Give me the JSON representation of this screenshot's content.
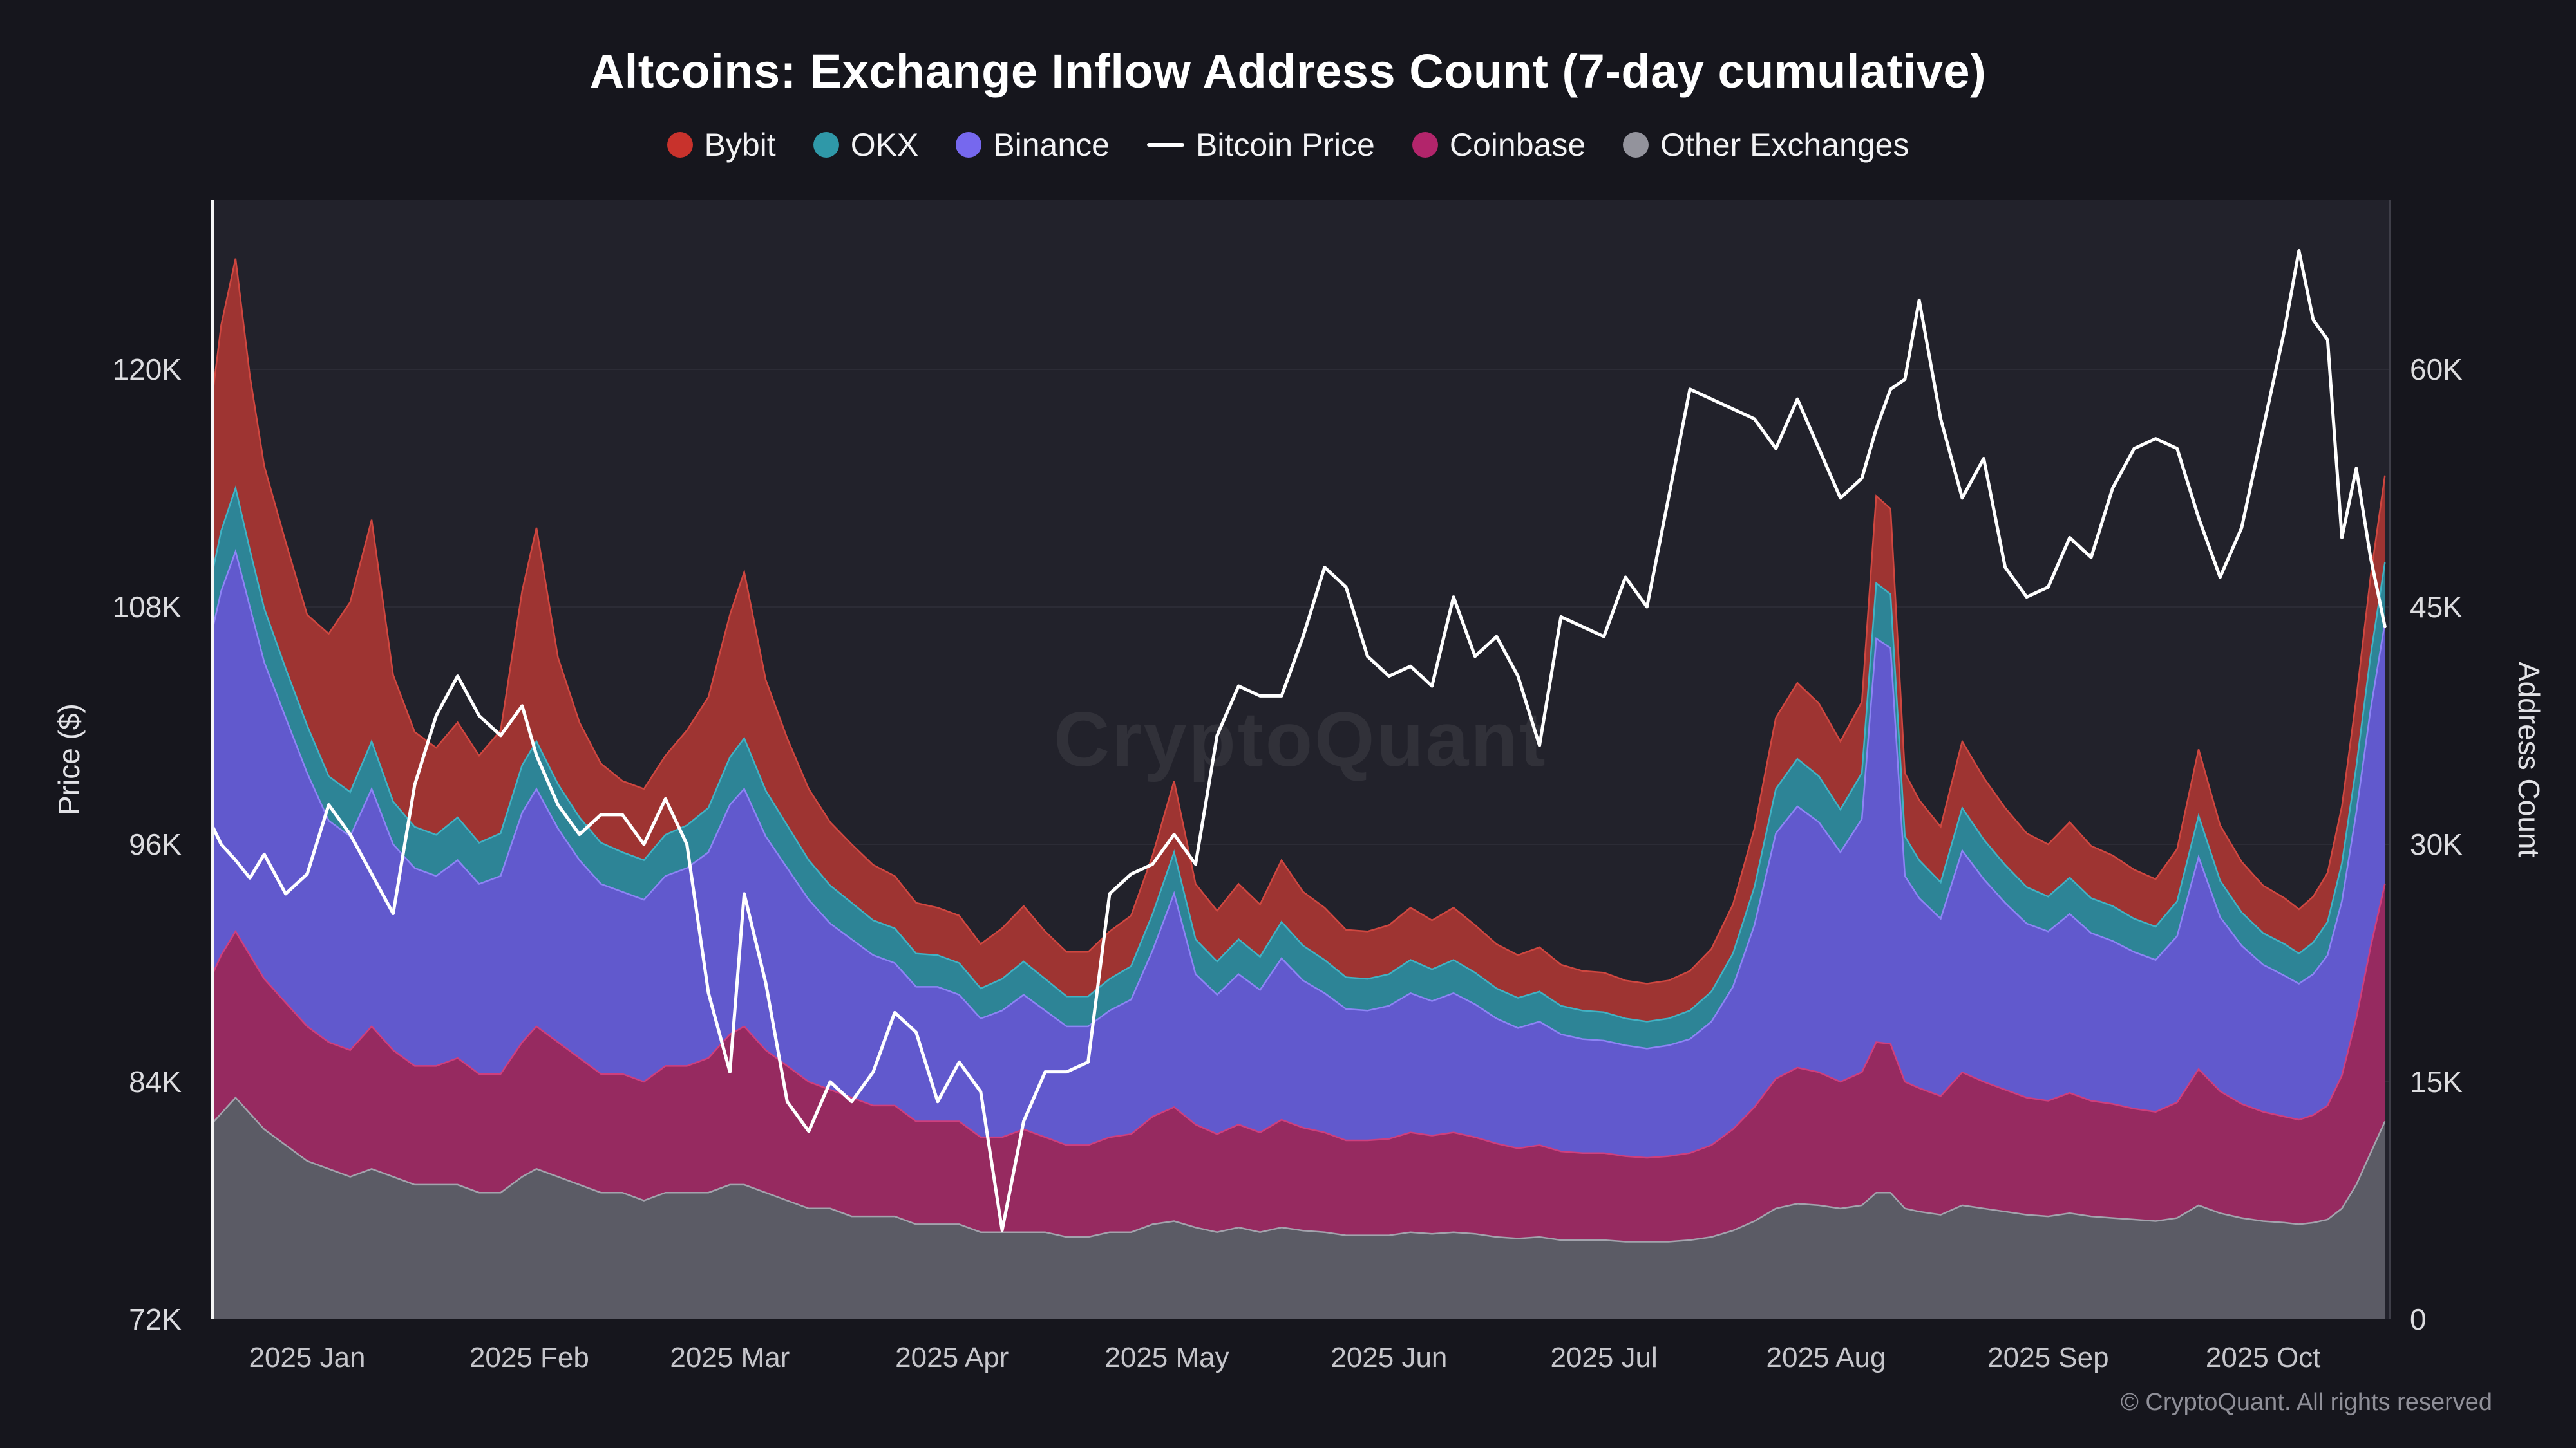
{
  "meta": {
    "title": "Altcoins: Exchange Inflow Address Count (7-day cumulative)",
    "watermark": "CryptoQuant",
    "copyright": "© CryptoQuant. All rights reserved",
    "left_axis_title": "Price ($)",
    "right_axis_title": "Address Count"
  },
  "legend": [
    {
      "label": "Bybit",
      "color": "#c8322c",
      "type": "dot"
    },
    {
      "label": "OKX",
      "color": "#2f98a8",
      "type": "dot"
    },
    {
      "label": "Binance",
      "color": "#7668ee",
      "type": "dot"
    },
    {
      "label": "Bitcoin Price",
      "color": "#ffffff",
      "type": "line"
    },
    {
      "label": "Coinbase",
      "color": "#b2256b",
      "type": "dot"
    },
    {
      "label": "Other Exchanges",
      "color": "#93939c",
      "type": "dot"
    }
  ],
  "chart_data": {
    "type": "area",
    "stacked": true,
    "title": "Altcoins: Exchange Inflow Address Count (7-day cumulative)",
    "units": "all series values in thousands; price in thousand USD (left axis), address counts (right axis)",
    "grid": true,
    "legend_position": "top",
    "columns": [
      "date",
      "bitcoin_price_k_usd",
      "other_exchanges_k",
      "coinbase_k",
      "binance_k",
      "okx_k",
      "bybit_k"
    ],
    "stack_order_bottom_to_top": [
      "Other Exchanges",
      "Coinbase",
      "Binance",
      "OKX",
      "Bybit"
    ],
    "layers": [
      {
        "name": "Other Exchanges",
        "slug": "other-exchanges",
        "fill": "#5b5b65",
        "stroke": "#a3a3ad"
      },
      {
        "name": "Coinbase",
        "slug": "coinbase",
        "fill": "#962a60",
        "stroke": "#cf3f7d"
      },
      {
        "name": "Binance",
        "slug": "binance",
        "fill": "#6159cd",
        "stroke": "#8d84f5"
      },
      {
        "name": "OKX",
        "slug": "okx",
        "fill": "#2d8496",
        "stroke": "#41b2c4"
      },
      {
        "name": "Bybit",
        "slug": "bybit",
        "fill": "#9e3432",
        "stroke": "#cf4740"
      }
    ],
    "left_axis": {
      "label": "Price ($)",
      "range_k": [
        72,
        128.5
      ],
      "ticks": [
        {
          "v": 72,
          "label": "72K"
        },
        {
          "v": 84,
          "label": "84K"
        },
        {
          "v": 96,
          "label": "96K"
        },
        {
          "v": 108,
          "label": "108K"
        },
        {
          "v": 120,
          "label": "120K"
        }
      ]
    },
    "right_axis": {
      "label": "Address Count",
      "range_k": [
        0,
        70.6
      ],
      "ticks": [
        {
          "v": 0,
          "label": "0"
        },
        {
          "v": 15,
          "label": "15K"
        },
        {
          "v": 30,
          "label": "30K"
        },
        {
          "v": 45,
          "label": "45K"
        },
        {
          "v": 60,
          "label": "60K"
        }
      ]
    },
    "x_ticks": [
      {
        "date": "2025-01-01",
        "label": "2025 Jan"
      },
      {
        "date": "2025-02-01",
        "label": "2025 Feb"
      },
      {
        "date": "2025-03-01",
        "label": "2025 Mar"
      },
      {
        "date": "2025-04-01",
        "label": "2025 Apr"
      },
      {
        "date": "2025-05-01",
        "label": "2025 May"
      },
      {
        "date": "2025-06-01",
        "label": "2025 Jun"
      },
      {
        "date": "2025-07-01",
        "label": "2025 Jul"
      },
      {
        "date": "2025-08-01",
        "label": "2025 Aug"
      },
      {
        "date": "2025-09-01",
        "label": "2025 Sep"
      },
      {
        "date": "2025-10-01",
        "label": "2025 Oct"
      }
    ],
    "rows": [
      [
        "2024-12-18",
        97.5,
        12.0,
        9.0,
        21.0,
        3.5,
        10.0
      ],
      [
        "2024-12-20",
        96.0,
        13.0,
        10.0,
        23.0,
        3.8,
        13.0
      ],
      [
        "2024-12-22",
        95.2,
        14.0,
        10.5,
        24.0,
        4.0,
        14.5
      ],
      [
        "2024-12-24",
        94.3,
        13.0,
        10.0,
        22.0,
        3.6,
        11.0
      ],
      [
        "2024-12-26",
        95.5,
        12.0,
        9.5,
        20.0,
        3.4,
        9.0
      ],
      [
        "2024-12-29",
        93.5,
        11.0,
        9.0,
        18.0,
        3.1,
        8.0
      ],
      [
        "2025-01-01",
        94.5,
        10.0,
        8.5,
        16.0,
        3.0,
        7.0
      ],
      [
        "2025-01-04",
        98.0,
        9.5,
        8.0,
        14.0,
        2.8,
        9.0
      ],
      [
        "2025-01-07",
        96.5,
        9.0,
        8.0,
        13.5,
        2.8,
        12.0
      ],
      [
        "2025-01-10",
        94.5,
        9.5,
        9.0,
        15.0,
        3.0,
        14.0
      ],
      [
        "2025-01-13",
        92.5,
        9.0,
        8.0,
        13.0,
        2.7,
        8.0
      ],
      [
        "2025-01-16",
        99.0,
        8.5,
        7.5,
        12.5,
        2.6,
        6.0
      ],
      [
        "2025-01-19",
        102.5,
        8.5,
        7.5,
        12.0,
        2.6,
        5.5
      ],
      [
        "2025-01-22",
        104.5,
        8.5,
        8.0,
        12.5,
        2.7,
        6.0
      ],
      [
        "2025-01-25",
        102.5,
        8.0,
        7.5,
        12.0,
        2.6,
        5.5
      ],
      [
        "2025-01-28",
        101.5,
        8.0,
        7.5,
        12.5,
        2.7,
        6.5
      ],
      [
        "2025-01-31",
        103.0,
        9.0,
        8.5,
        14.5,
        3.0,
        11.0
      ],
      [
        "2025-02-02",
        100.5,
        9.5,
        9.0,
        15.0,
        3.0,
        13.5
      ],
      [
        "2025-02-05",
        98.0,
        9.0,
        8.5,
        13.5,
        2.8,
        8.0
      ],
      [
        "2025-02-08",
        96.5,
        8.5,
        8.0,
        12.5,
        2.7,
        6.0
      ],
      [
        "2025-02-11",
        97.5,
        8.0,
        7.5,
        12.0,
        2.6,
        5.0
      ],
      [
        "2025-02-14",
        97.5,
        8.0,
        7.5,
        11.5,
        2.5,
        4.5
      ],
      [
        "2025-02-17",
        96.0,
        7.5,
        7.5,
        11.5,
        2.5,
        4.5
      ],
      [
        "2025-02-20",
        98.3,
        8.0,
        8.0,
        12.0,
        2.6,
        5.0
      ],
      [
        "2025-02-23",
        96.0,
        8.0,
        8.0,
        12.5,
        2.7,
        6.0
      ],
      [
        "2025-02-26",
        88.5,
        8.0,
        8.5,
        13.0,
        2.8,
        7.0
      ],
      [
        "2025-03-01",
        84.5,
        8.5,
        9.5,
        14.5,
        3.0,
        9.0
      ],
      [
        "2025-03-03",
        93.5,
        8.5,
        10.0,
        15.0,
        3.2,
        10.5
      ],
      [
        "2025-03-06",
        89.0,
        8.0,
        9.0,
        13.5,
        2.9,
        7.0
      ],
      [
        "2025-03-09",
        83.0,
        7.5,
        8.5,
        12.5,
        2.7,
        5.5
      ],
      [
        "2025-03-12",
        81.5,
        7.0,
        8.0,
        11.5,
        2.5,
        4.5
      ],
      [
        "2025-03-15",
        84.0,
        7.0,
        7.5,
        10.5,
        2.4,
        4.0
      ],
      [
        "2025-03-18",
        83.0,
        6.5,
        7.5,
        10.0,
        2.3,
        3.7
      ],
      [
        "2025-03-21",
        84.5,
        6.5,
        7.0,
        9.5,
        2.2,
        3.5
      ],
      [
        "2025-03-24",
        87.5,
        6.5,
        7.0,
        9.0,
        2.2,
        3.3
      ],
      [
        "2025-03-27",
        86.5,
        6.0,
        6.5,
        8.5,
        2.1,
        3.2
      ],
      [
        "2025-03-30",
        83.0,
        6.0,
        6.5,
        8.5,
        2.0,
        3.0
      ],
      [
        "2025-04-02",
        85.0,
        6.0,
        6.5,
        8.0,
        2.0,
        3.0
      ],
      [
        "2025-04-05",
        83.5,
        5.5,
        6.0,
        7.5,
        1.9,
        2.8
      ],
      [
        "2025-04-08",
        76.5,
        5.5,
        6.0,
        8.0,
        2.0,
        3.2
      ],
      [
        "2025-04-11",
        82.0,
        5.5,
        6.5,
        8.5,
        2.1,
        3.5
      ],
      [
        "2025-04-14",
        84.5,
        5.5,
        6.0,
        8.0,
        2.0,
        3.0
      ],
      [
        "2025-04-17",
        84.5,
        5.2,
        5.8,
        7.5,
        1.9,
        2.8
      ],
      [
        "2025-04-20",
        85.0,
        5.2,
        5.8,
        7.5,
        1.9,
        2.8
      ],
      [
        "2025-04-23",
        93.5,
        5.5,
        6.0,
        8.0,
        2.0,
        3.0
      ],
      [
        "2025-04-26",
        94.5,
        5.5,
        6.2,
        8.5,
        2.1,
        3.2
      ],
      [
        "2025-04-29",
        95.0,
        6.0,
        6.8,
        10.5,
        2.3,
        3.7
      ],
      [
        "2025-05-02",
        96.5,
        6.2,
        7.2,
        13.5,
        2.6,
        4.5
      ],
      [
        "2025-05-05",
        95.0,
        5.8,
        6.5,
        9.5,
        2.2,
        3.5
      ],
      [
        "2025-05-08",
        101.5,
        5.5,
        6.2,
        8.8,
        2.1,
        3.2
      ],
      [
        "2025-05-11",
        104.0,
        5.8,
        6.5,
        9.5,
        2.2,
        3.5
      ],
      [
        "2025-05-14",
        103.5,
        5.5,
        6.3,
        9.0,
        2.1,
        3.3
      ],
      [
        "2025-05-17",
        103.5,
        5.8,
        6.8,
        10.2,
        2.3,
        3.9
      ],
      [
        "2025-05-20",
        106.5,
        5.6,
        6.5,
        9.3,
        2.2,
        3.4
      ],
      [
        "2025-05-23",
        110.0,
        5.5,
        6.3,
        8.8,
        2.1,
        3.3
      ],
      [
        "2025-05-26",
        109.0,
        5.3,
        6.0,
        8.3,
        2.0,
        3.0
      ],
      [
        "2025-05-29",
        105.5,
        5.3,
        6.0,
        8.2,
        2.0,
        3.0
      ],
      [
        "2025-06-01",
        104.5,
        5.3,
        6.1,
        8.4,
        2.0,
        3.1
      ],
      [
        "2025-06-04",
        105.0,
        5.5,
        6.3,
        8.8,
        2.1,
        3.3
      ],
      [
        "2025-06-07",
        104.0,
        5.4,
        6.2,
        8.5,
        2.0,
        3.1
      ],
      [
        "2025-06-10",
        108.5,
        5.5,
        6.3,
        8.8,
        2.1,
        3.3
      ],
      [
        "2025-06-13",
        105.5,
        5.4,
        6.1,
        8.4,
        2.0,
        3.0
      ],
      [
        "2025-06-16",
        106.5,
        5.2,
        5.9,
        7.9,
        1.9,
        2.8
      ],
      [
        "2025-06-19",
        104.5,
        5.1,
        5.7,
        7.6,
        1.9,
        2.7
      ],
      [
        "2025-06-22",
        101.0,
        5.2,
        5.8,
        7.8,
        1.9,
        2.8
      ],
      [
        "2025-06-25",
        107.5,
        5.0,
        5.6,
        7.4,
        1.8,
        2.6
      ],
      [
        "2025-06-28",
        107.0,
        5.0,
        5.5,
        7.2,
        1.8,
        2.5
      ],
      [
        "2025-07-01",
        106.5,
        5.0,
        5.5,
        7.1,
        1.8,
        2.5
      ],
      [
        "2025-07-04",
        109.5,
        4.9,
        5.4,
        7.0,
        1.7,
        2.4
      ],
      [
        "2025-07-07",
        108.0,
        4.9,
        5.3,
        6.9,
        1.7,
        2.4
      ],
      [
        "2025-07-10",
        113.5,
        4.9,
        5.4,
        7.0,
        1.7,
        2.4
      ],
      [
        "2025-07-13",
        119.0,
        5.0,
        5.5,
        7.2,
        1.8,
        2.5
      ],
      [
        "2025-07-16",
        118.5,
        5.2,
        5.8,
        7.8,
        1.9,
        2.7
      ],
      [
        "2025-07-19",
        118.0,
        5.6,
        6.4,
        9.0,
        2.1,
        3.1
      ],
      [
        "2025-07-22",
        117.5,
        6.2,
        7.2,
        11.5,
        2.4,
        3.7
      ],
      [
        "2025-07-25",
        116.0,
        7.0,
        8.2,
        15.5,
        2.8,
        4.5
      ],
      [
        "2025-07-28",
        118.5,
        7.3,
        8.6,
        16.5,
        3.0,
        4.8
      ],
      [
        "2025-07-31",
        116.0,
        7.2,
        8.4,
        15.8,
        2.9,
        4.6
      ],
      [
        "2025-08-03",
        113.5,
        7.0,
        8.0,
        14.5,
        2.7,
        4.3
      ],
      [
        "2025-08-06",
        114.5,
        7.2,
        8.4,
        16.0,
        2.9,
        4.5
      ],
      [
        "2025-08-08",
        117.0,
        8.0,
        9.5,
        25.5,
        3.5,
        5.5
      ],
      [
        "2025-08-10",
        119.0,
        8.0,
        9.4,
        25.0,
        3.4,
        5.4
      ],
      [
        "2025-08-12",
        119.5,
        7.0,
        8.0,
        13.0,
        2.5,
        4.0
      ],
      [
        "2025-08-14",
        123.5,
        6.8,
        7.8,
        12.0,
        2.4,
        3.8
      ],
      [
        "2025-08-17",
        117.5,
        6.6,
        7.5,
        11.2,
        2.3,
        3.5
      ],
      [
        "2025-08-20",
        113.5,
        7.2,
        8.4,
        14.0,
        2.7,
        4.2
      ],
      [
        "2025-08-23",
        115.5,
        7.0,
        8.0,
        12.8,
        2.5,
        3.9
      ],
      [
        "2025-08-26",
        110.0,
        6.8,
        7.7,
        11.8,
        2.4,
        3.6
      ],
      [
        "2025-08-29",
        108.5,
        6.6,
        7.4,
        11.0,
        2.3,
        3.4
      ],
      [
        "2025-09-01",
        109.0,
        6.5,
        7.3,
        10.7,
        2.2,
        3.3
      ],
      [
        "2025-09-04",
        111.5,
        6.7,
        7.6,
        11.3,
        2.3,
        3.5
      ],
      [
        "2025-09-07",
        110.5,
        6.5,
        7.3,
        10.6,
        2.2,
        3.3
      ],
      [
        "2025-09-10",
        114.0,
        6.4,
        7.2,
        10.3,
        2.2,
        3.2
      ],
      [
        "2025-09-13",
        116.0,
        6.3,
        7.0,
        9.9,
        2.1,
        3.1
      ],
      [
        "2025-09-16",
        116.5,
        6.2,
        6.9,
        9.6,
        2.1,
        3.0
      ],
      [
        "2025-09-19",
        116.0,
        6.4,
        7.3,
        10.5,
        2.2,
        3.3
      ],
      [
        "2025-09-22",
        112.5,
        7.2,
        8.6,
        13.4,
        2.6,
        4.2
      ],
      [
        "2025-09-25",
        109.5,
        6.7,
        7.7,
        11.0,
        2.3,
        3.5
      ],
      [
        "2025-09-28",
        112.0,
        6.4,
        7.2,
        10.0,
        2.1,
        3.2
      ],
      [
        "2025-10-01",
        117.0,
        6.2,
        6.9,
        9.3,
        2.0,
        3.0
      ],
      [
        "2025-10-04",
        122.0,
        6.1,
        6.7,
        8.9,
        2.0,
        2.9
      ],
      [
        "2025-10-06",
        126.0,
        6.0,
        6.6,
        8.6,
        1.9,
        2.8
      ],
      [
        "2025-10-08",
        122.5,
        6.1,
        6.8,
        8.9,
        2.0,
        2.9
      ],
      [
        "2025-10-10",
        121.5,
        6.3,
        7.2,
        9.5,
        2.1,
        3.1
      ],
      [
        "2025-10-12",
        111.5,
        7.0,
        8.4,
        11.0,
        2.4,
        3.6
      ],
      [
        "2025-10-14",
        115.0,
        8.5,
        10.5,
        13.0,
        2.9,
        4.3
      ],
      [
        "2025-10-16",
        110.5,
        10.5,
        13.0,
        15.0,
        3.4,
        5.0
      ],
      [
        "2025-10-18",
        107.0,
        12.5,
        15.0,
        16.5,
        3.8,
        5.5
      ]
    ]
  }
}
